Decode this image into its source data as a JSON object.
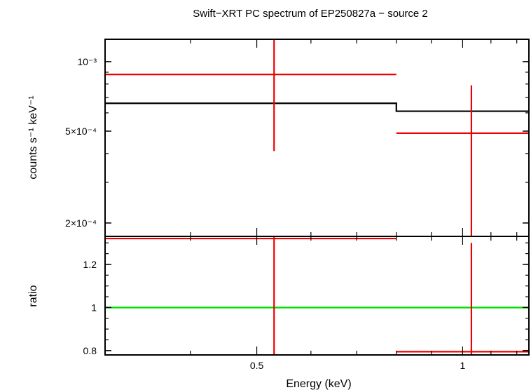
{
  "chart_data": {
    "title": "Swift−XRT PC spectrum of EP250827a − source 2",
    "xlabel": "Energy (keV)",
    "x_scale": "log",
    "x_range": [
      0.3,
      1.25
    ],
    "x_ticks": [
      {
        "value": 0.5,
        "label": "0.5"
      },
      {
        "value": 1,
        "label": "1"
      }
    ],
    "colors": {
      "data": "#ee0000",
      "model": "#000000",
      "unity": "#00dd00",
      "axis": "#000000"
    },
    "panels": [
      {
        "name": "spectrum",
        "type": "scatter",
        "y_scale": "log",
        "ylabel": "counts s⁻¹ keV⁻¹",
        "y_range": [
          0.000175,
          0.00125
        ],
        "y_ticks": [
          {
            "value": 0.001,
            "label": "10⁻³"
          },
          {
            "value": 0.0005,
            "label": "5×10⁻⁴"
          },
          {
            "value": 0.0002,
            "label": "2×10⁻⁴"
          }
        ],
        "data_points": [
          {
            "x": 0.53,
            "xlo": 0.3,
            "xhi": 0.8,
            "y": 0.00088,
            "ylo": 0.00041,
            "yhi": 0.00125
          },
          {
            "x": 1.03,
            "xlo": 0.8,
            "xhi": 1.25,
            "y": 0.00049,
            "ylo": 0.000175,
            "yhi": 0.00079
          }
        ],
        "model_steps": [
          {
            "xlo": 0.3,
            "xhi": 0.8,
            "y": 0.00066
          },
          {
            "xlo": 0.8,
            "xhi": 1.25,
            "y": 0.00061
          }
        ]
      },
      {
        "name": "ratio",
        "type": "scatter",
        "y_scale": "linear",
        "ylabel": "ratio",
        "y_range": [
          0.78,
          1.33
        ],
        "y_ticks": [
          {
            "value": 0.8,
            "label": "0.8"
          },
          {
            "value": 1,
            "label": "1"
          },
          {
            "value": 1.2,
            "label": "1.2"
          }
        ],
        "unity_line": 1,
        "data_points": [
          {
            "x": 0.53,
            "xlo": 0.3,
            "xhi": 0.8,
            "y": 1.32,
            "ylo": 0.78,
            "yhi": 1.33
          },
          {
            "x": 1.03,
            "xlo": 0.8,
            "xhi": 1.25,
            "y": 0.795,
            "ylo": 0.78,
            "yhi": 1.3
          }
        ]
      }
    ]
  }
}
